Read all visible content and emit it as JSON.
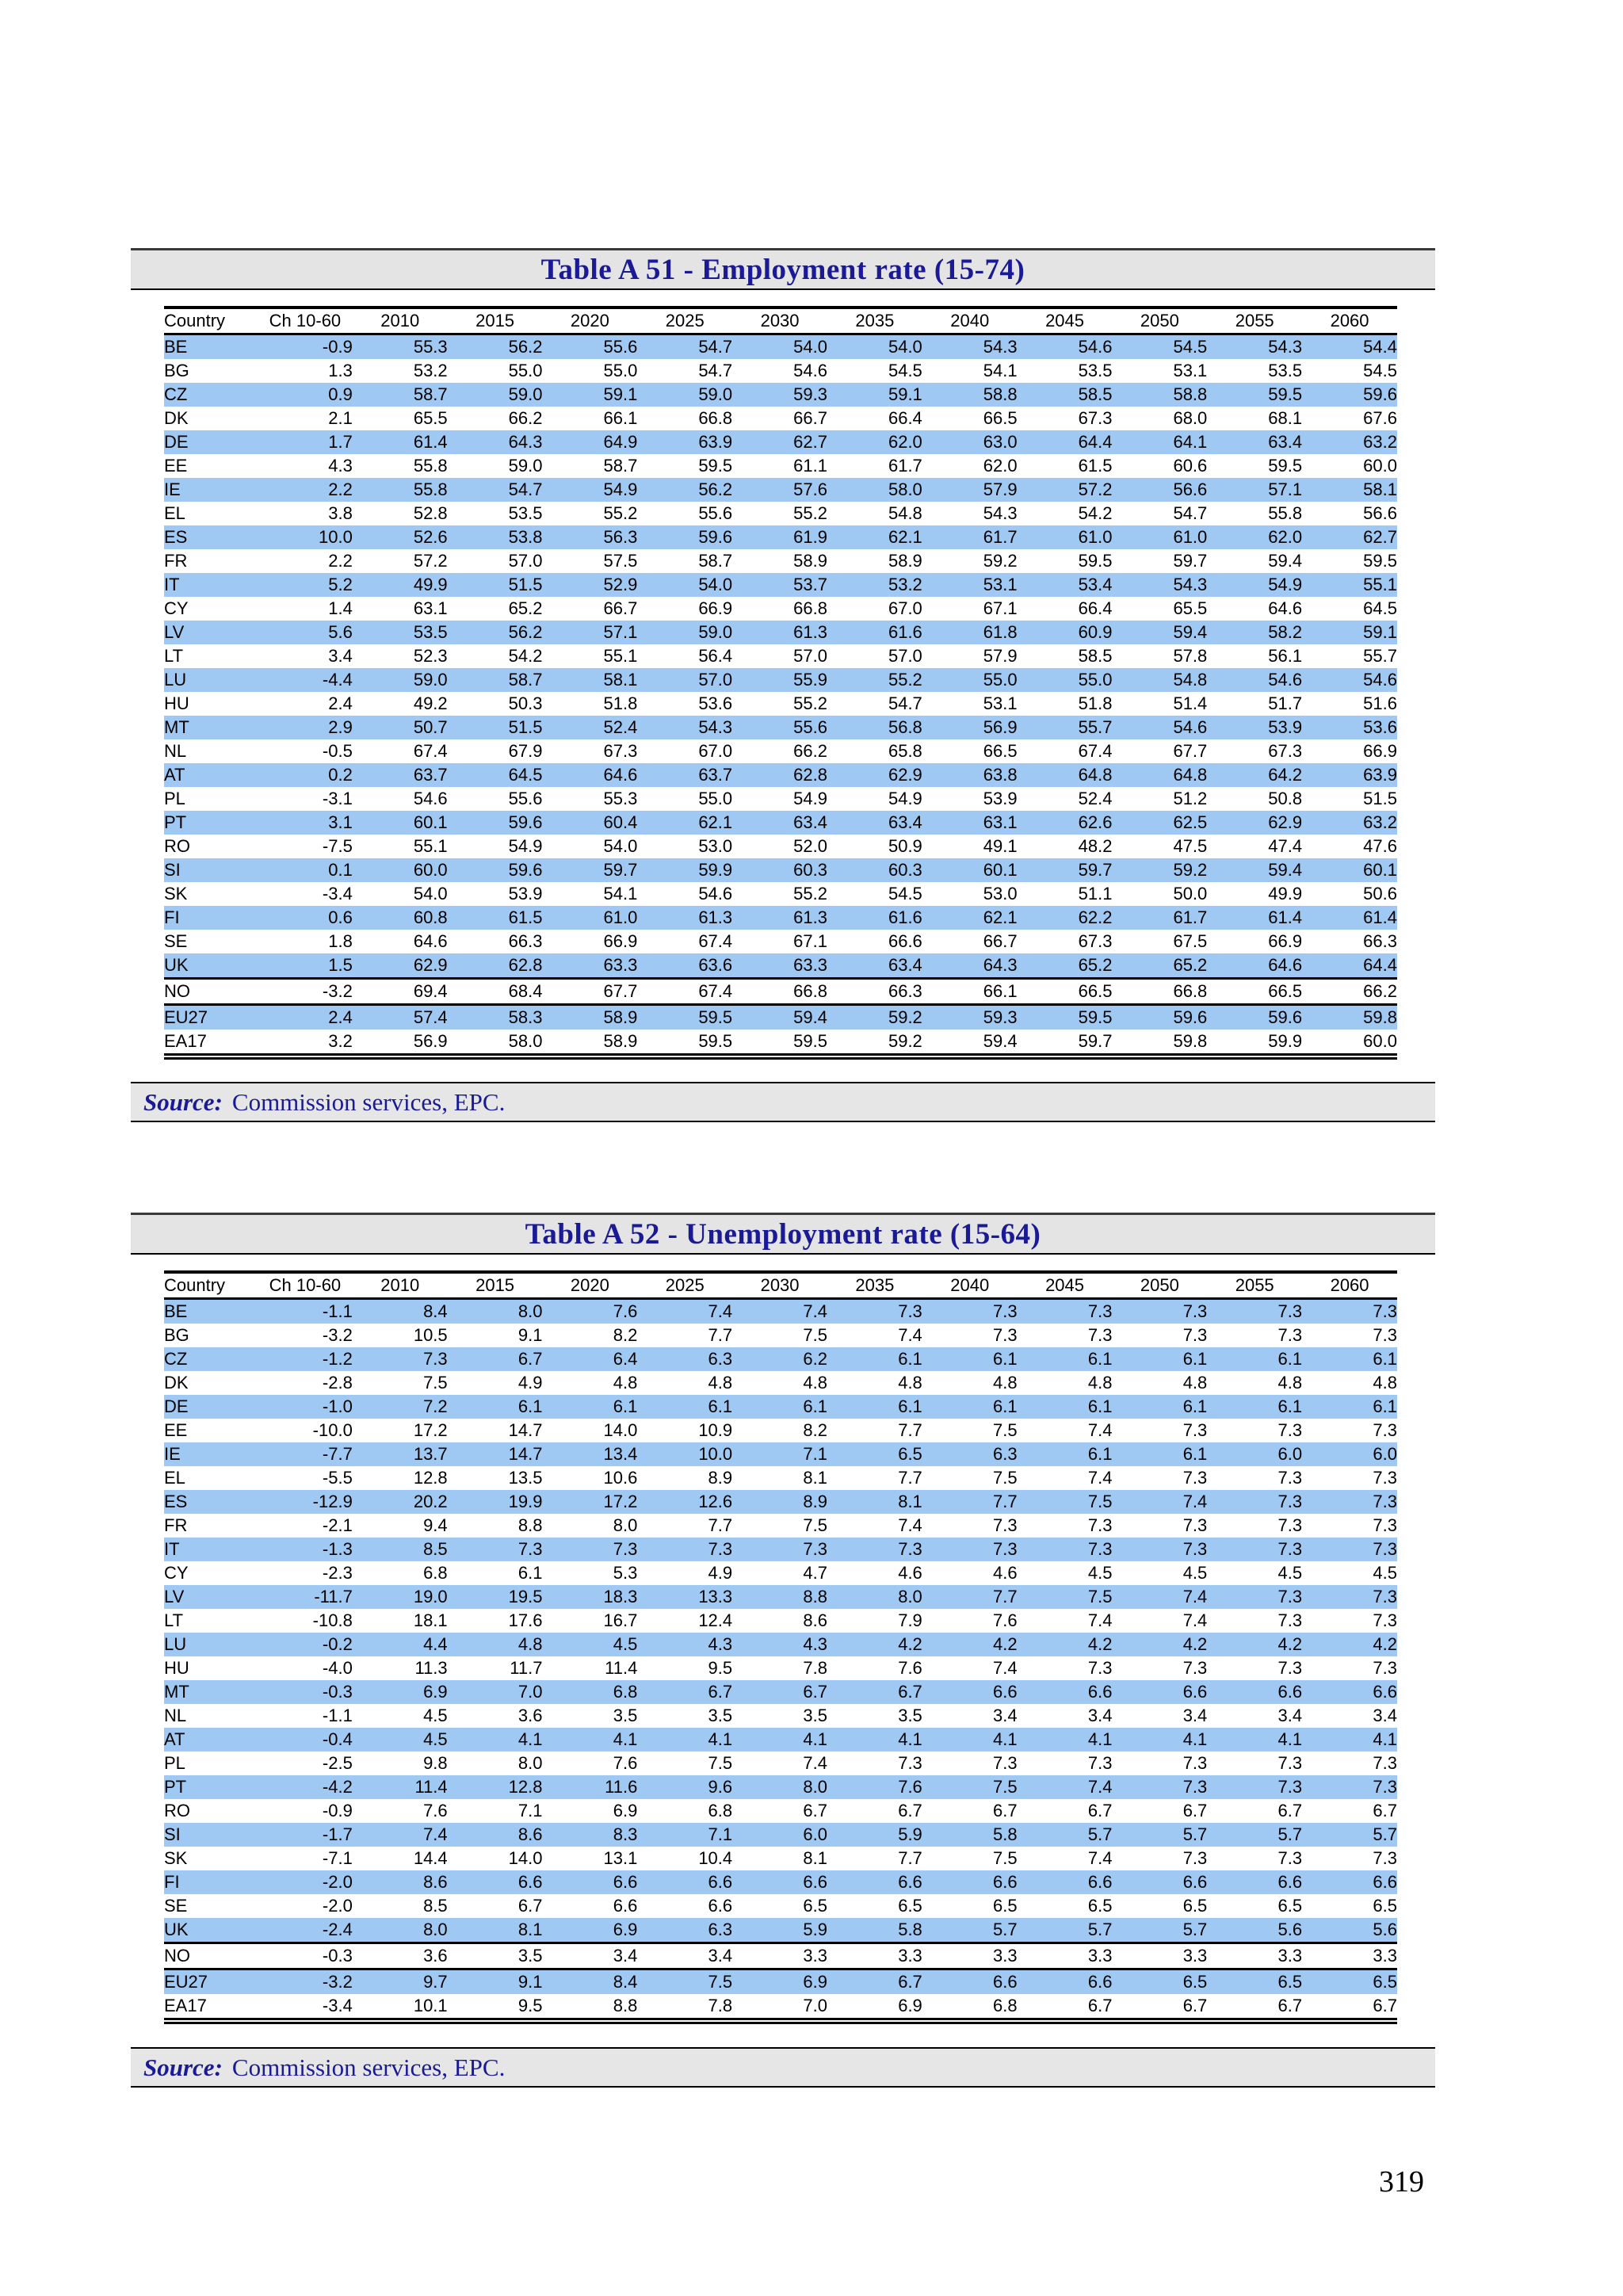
{
  "page": {
    "number": "319"
  },
  "colors": {
    "row_highlight": "#9fc9f3",
    "banner_background": "#e4e4e4",
    "title_navy": "#1a1a96"
  },
  "tables": [
    {
      "title": "Table A 51 - Employment rate (15-74)",
      "source_label": "Source:",
      "source_text": "Commission services, EPC.",
      "columns": [
        "Country",
        "Ch 10-60",
        "2010",
        "2015",
        "2020",
        "2025",
        "2030",
        "2035",
        "2040",
        "2045",
        "2050",
        "2055",
        "2060"
      ],
      "rule_below": [
        "UK",
        "NO"
      ],
      "rows": [
        [
          "BE",
          "-0.9",
          "55.3",
          "56.2",
          "55.6",
          "54.7",
          "54.0",
          "54.0",
          "54.3",
          "54.6",
          "54.5",
          "54.3",
          "54.4"
        ],
        [
          "BG",
          "1.3",
          "53.2",
          "55.0",
          "55.0",
          "54.7",
          "54.6",
          "54.5",
          "54.1",
          "53.5",
          "53.1",
          "53.5",
          "54.5"
        ],
        [
          "CZ",
          "0.9",
          "58.7",
          "59.0",
          "59.1",
          "59.0",
          "59.3",
          "59.1",
          "58.8",
          "58.5",
          "58.8",
          "59.5",
          "59.6"
        ],
        [
          "DK",
          "2.1",
          "65.5",
          "66.2",
          "66.1",
          "66.8",
          "66.7",
          "66.4",
          "66.5",
          "67.3",
          "68.0",
          "68.1",
          "67.6"
        ],
        [
          "DE",
          "1.7",
          "61.4",
          "64.3",
          "64.9",
          "63.9",
          "62.7",
          "62.0",
          "63.0",
          "64.4",
          "64.1",
          "63.4",
          "63.2"
        ],
        [
          "EE",
          "4.3",
          "55.8",
          "59.0",
          "58.7",
          "59.5",
          "61.1",
          "61.7",
          "62.0",
          "61.5",
          "60.6",
          "59.5",
          "60.0"
        ],
        [
          "IE",
          "2.2",
          "55.8",
          "54.7",
          "54.9",
          "56.2",
          "57.6",
          "58.0",
          "57.9",
          "57.2",
          "56.6",
          "57.1",
          "58.1"
        ],
        [
          "EL",
          "3.8",
          "52.8",
          "53.5",
          "55.2",
          "55.6",
          "55.2",
          "54.8",
          "54.3",
          "54.2",
          "54.7",
          "55.8",
          "56.6"
        ],
        [
          "ES",
          "10.0",
          "52.6",
          "53.8",
          "56.3",
          "59.6",
          "61.9",
          "62.1",
          "61.7",
          "61.0",
          "61.0",
          "62.0",
          "62.7"
        ],
        [
          "FR",
          "2.2",
          "57.2",
          "57.0",
          "57.5",
          "58.7",
          "58.9",
          "58.9",
          "59.2",
          "59.5",
          "59.7",
          "59.4",
          "59.5"
        ],
        [
          "IT",
          "5.2",
          "49.9",
          "51.5",
          "52.9",
          "54.0",
          "53.7",
          "53.2",
          "53.1",
          "53.4",
          "54.3",
          "54.9",
          "55.1"
        ],
        [
          "CY",
          "1.4",
          "63.1",
          "65.2",
          "66.7",
          "66.9",
          "66.8",
          "67.0",
          "67.1",
          "66.4",
          "65.5",
          "64.6",
          "64.5"
        ],
        [
          "LV",
          "5.6",
          "53.5",
          "56.2",
          "57.1",
          "59.0",
          "61.3",
          "61.6",
          "61.8",
          "60.9",
          "59.4",
          "58.2",
          "59.1"
        ],
        [
          "LT",
          "3.4",
          "52.3",
          "54.2",
          "55.1",
          "56.4",
          "57.0",
          "57.0",
          "57.9",
          "58.5",
          "57.8",
          "56.1",
          "55.7"
        ],
        [
          "LU",
          "-4.4",
          "59.0",
          "58.7",
          "58.1",
          "57.0",
          "55.9",
          "55.2",
          "55.0",
          "55.0",
          "54.8",
          "54.6",
          "54.6"
        ],
        [
          "HU",
          "2.4",
          "49.2",
          "50.3",
          "51.8",
          "53.6",
          "55.2",
          "54.7",
          "53.1",
          "51.8",
          "51.4",
          "51.7",
          "51.6"
        ],
        [
          "MT",
          "2.9",
          "50.7",
          "51.5",
          "52.4",
          "54.3",
          "55.6",
          "56.8",
          "56.9",
          "55.7",
          "54.6",
          "53.9",
          "53.6"
        ],
        [
          "NL",
          "-0.5",
          "67.4",
          "67.9",
          "67.3",
          "67.0",
          "66.2",
          "65.8",
          "66.5",
          "67.4",
          "67.7",
          "67.3",
          "66.9"
        ],
        [
          "AT",
          "0.2",
          "63.7",
          "64.5",
          "64.6",
          "63.7",
          "62.8",
          "62.9",
          "63.8",
          "64.8",
          "64.8",
          "64.2",
          "63.9"
        ],
        [
          "PL",
          "-3.1",
          "54.6",
          "55.6",
          "55.3",
          "55.0",
          "54.9",
          "54.9",
          "53.9",
          "52.4",
          "51.2",
          "50.8",
          "51.5"
        ],
        [
          "PT",
          "3.1",
          "60.1",
          "59.6",
          "60.4",
          "62.1",
          "63.4",
          "63.4",
          "63.1",
          "62.6",
          "62.5",
          "62.9",
          "63.2"
        ],
        [
          "RO",
          "-7.5",
          "55.1",
          "54.9",
          "54.0",
          "53.0",
          "52.0",
          "50.9",
          "49.1",
          "48.2",
          "47.5",
          "47.4",
          "47.6"
        ],
        [
          "SI",
          "0.1",
          "60.0",
          "59.6",
          "59.7",
          "59.9",
          "60.3",
          "60.3",
          "60.1",
          "59.7",
          "59.2",
          "59.4",
          "60.1"
        ],
        [
          "SK",
          "-3.4",
          "54.0",
          "53.9",
          "54.1",
          "54.6",
          "55.2",
          "54.5",
          "53.0",
          "51.1",
          "50.0",
          "49.9",
          "50.6"
        ],
        [
          "FI",
          "0.6",
          "60.8",
          "61.5",
          "61.0",
          "61.3",
          "61.3",
          "61.6",
          "62.1",
          "62.2",
          "61.7",
          "61.4",
          "61.4"
        ],
        [
          "SE",
          "1.8",
          "64.6",
          "66.3",
          "66.9",
          "67.4",
          "67.1",
          "66.6",
          "66.7",
          "67.3",
          "67.5",
          "66.9",
          "66.3"
        ],
        [
          "UK",
          "1.5",
          "62.9",
          "62.8",
          "63.3",
          "63.6",
          "63.3",
          "63.4",
          "64.3",
          "65.2",
          "65.2",
          "64.6",
          "64.4"
        ],
        [
          "NO",
          "-3.2",
          "69.4",
          "68.4",
          "67.7",
          "67.4",
          "66.8",
          "66.3",
          "66.1",
          "66.5",
          "66.8",
          "66.5",
          "66.2"
        ],
        [
          "EU27",
          "2.4",
          "57.4",
          "58.3",
          "58.9",
          "59.5",
          "59.4",
          "59.2",
          "59.3",
          "59.5",
          "59.6",
          "59.6",
          "59.8"
        ],
        [
          "EA17",
          "3.2",
          "56.9",
          "58.0",
          "58.9",
          "59.5",
          "59.5",
          "59.2",
          "59.4",
          "59.7",
          "59.8",
          "59.9",
          "60.0"
        ]
      ]
    },
    {
      "title": "Table A 52 - Unemployment rate (15-64)",
      "source_label": "Source:",
      "source_text": "Commission services, EPC.",
      "columns": [
        "Country",
        "Ch 10-60",
        "2010",
        "2015",
        "2020",
        "2025",
        "2030",
        "2035",
        "2040",
        "2045",
        "2050",
        "2055",
        "2060"
      ],
      "rule_below": [
        "UK",
        "NO"
      ],
      "rows": [
        [
          "BE",
          "-1.1",
          "8.4",
          "8.0",
          "7.6",
          "7.4",
          "7.4",
          "7.3",
          "7.3",
          "7.3",
          "7.3",
          "7.3",
          "7.3"
        ],
        [
          "BG",
          "-3.2",
          "10.5",
          "9.1",
          "8.2",
          "7.7",
          "7.5",
          "7.4",
          "7.3",
          "7.3",
          "7.3",
          "7.3",
          "7.3"
        ],
        [
          "CZ",
          "-1.2",
          "7.3",
          "6.7",
          "6.4",
          "6.3",
          "6.2",
          "6.1",
          "6.1",
          "6.1",
          "6.1",
          "6.1",
          "6.1"
        ],
        [
          "DK",
          "-2.8",
          "7.5",
          "4.9",
          "4.8",
          "4.8",
          "4.8",
          "4.8",
          "4.8",
          "4.8",
          "4.8",
          "4.8",
          "4.8"
        ],
        [
          "DE",
          "-1.0",
          "7.2",
          "6.1",
          "6.1",
          "6.1",
          "6.1",
          "6.1",
          "6.1",
          "6.1",
          "6.1",
          "6.1",
          "6.1"
        ],
        [
          "EE",
          "-10.0",
          "17.2",
          "14.7",
          "14.0",
          "10.9",
          "8.2",
          "7.7",
          "7.5",
          "7.4",
          "7.3",
          "7.3",
          "7.3"
        ],
        [
          "IE",
          "-7.7",
          "13.7",
          "14.7",
          "13.4",
          "10.0",
          "7.1",
          "6.5",
          "6.3",
          "6.1",
          "6.1",
          "6.0",
          "6.0"
        ],
        [
          "EL",
          "-5.5",
          "12.8",
          "13.5",
          "10.6",
          "8.9",
          "8.1",
          "7.7",
          "7.5",
          "7.4",
          "7.3",
          "7.3",
          "7.3"
        ],
        [
          "ES",
          "-12.9",
          "20.2",
          "19.9",
          "17.2",
          "12.6",
          "8.9",
          "8.1",
          "7.7",
          "7.5",
          "7.4",
          "7.3",
          "7.3"
        ],
        [
          "FR",
          "-2.1",
          "9.4",
          "8.8",
          "8.0",
          "7.7",
          "7.5",
          "7.4",
          "7.3",
          "7.3",
          "7.3",
          "7.3",
          "7.3"
        ],
        [
          "IT",
          "-1.3",
          "8.5",
          "7.3",
          "7.3",
          "7.3",
          "7.3",
          "7.3",
          "7.3",
          "7.3",
          "7.3",
          "7.3",
          "7.3"
        ],
        [
          "CY",
          "-2.3",
          "6.8",
          "6.1",
          "5.3",
          "4.9",
          "4.7",
          "4.6",
          "4.6",
          "4.5",
          "4.5",
          "4.5",
          "4.5"
        ],
        [
          "LV",
          "-11.7",
          "19.0",
          "19.5",
          "18.3",
          "13.3",
          "8.8",
          "8.0",
          "7.7",
          "7.5",
          "7.4",
          "7.3",
          "7.3"
        ],
        [
          "LT",
          "-10.8",
          "18.1",
          "17.6",
          "16.7",
          "12.4",
          "8.6",
          "7.9",
          "7.6",
          "7.4",
          "7.4",
          "7.3",
          "7.3"
        ],
        [
          "LU",
          "-0.2",
          "4.4",
          "4.8",
          "4.5",
          "4.3",
          "4.3",
          "4.2",
          "4.2",
          "4.2",
          "4.2",
          "4.2",
          "4.2"
        ],
        [
          "HU",
          "-4.0",
          "11.3",
          "11.7",
          "11.4",
          "9.5",
          "7.8",
          "7.6",
          "7.4",
          "7.3",
          "7.3",
          "7.3",
          "7.3"
        ],
        [
          "MT",
          "-0.3",
          "6.9",
          "7.0",
          "6.8",
          "6.7",
          "6.7",
          "6.7",
          "6.6",
          "6.6",
          "6.6",
          "6.6",
          "6.6"
        ],
        [
          "NL",
          "-1.1",
          "4.5",
          "3.6",
          "3.5",
          "3.5",
          "3.5",
          "3.5",
          "3.4",
          "3.4",
          "3.4",
          "3.4",
          "3.4"
        ],
        [
          "AT",
          "-0.4",
          "4.5",
          "4.1",
          "4.1",
          "4.1",
          "4.1",
          "4.1",
          "4.1",
          "4.1",
          "4.1",
          "4.1",
          "4.1"
        ],
        [
          "PL",
          "-2.5",
          "9.8",
          "8.0",
          "7.6",
          "7.5",
          "7.4",
          "7.3",
          "7.3",
          "7.3",
          "7.3",
          "7.3",
          "7.3"
        ],
        [
          "PT",
          "-4.2",
          "11.4",
          "12.8",
          "11.6",
          "9.6",
          "8.0",
          "7.6",
          "7.5",
          "7.4",
          "7.3",
          "7.3",
          "7.3"
        ],
        [
          "RO",
          "-0.9",
          "7.6",
          "7.1",
          "6.9",
          "6.8",
          "6.7",
          "6.7",
          "6.7",
          "6.7",
          "6.7",
          "6.7",
          "6.7"
        ],
        [
          "SI",
          "-1.7",
          "7.4",
          "8.6",
          "8.3",
          "7.1",
          "6.0",
          "5.9",
          "5.8",
          "5.7",
          "5.7",
          "5.7",
          "5.7"
        ],
        [
          "SK",
          "-7.1",
          "14.4",
          "14.0",
          "13.1",
          "10.4",
          "8.1",
          "7.7",
          "7.5",
          "7.4",
          "7.3",
          "7.3",
          "7.3"
        ],
        [
          "FI",
          "-2.0",
          "8.6",
          "6.6",
          "6.6",
          "6.6",
          "6.6",
          "6.6",
          "6.6",
          "6.6",
          "6.6",
          "6.6",
          "6.6"
        ],
        [
          "SE",
          "-2.0",
          "8.5",
          "6.7",
          "6.6",
          "6.6",
          "6.5",
          "6.5",
          "6.5",
          "6.5",
          "6.5",
          "6.5",
          "6.5"
        ],
        [
          "UK",
          "-2.4",
          "8.0",
          "8.1",
          "6.9",
          "6.3",
          "5.9",
          "5.8",
          "5.7",
          "5.7",
          "5.7",
          "5.6",
          "5.6"
        ],
        [
          "NO",
          "-0.3",
          "3.6",
          "3.5",
          "3.4",
          "3.4",
          "3.3",
          "3.3",
          "3.3",
          "3.3",
          "3.3",
          "3.3",
          "3.3"
        ],
        [
          "EU27",
          "-3.2",
          "9.7",
          "9.1",
          "8.4",
          "7.5",
          "6.9",
          "6.7",
          "6.6",
          "6.6",
          "6.5",
          "6.5",
          "6.5"
        ],
        [
          "EA17",
          "-3.4",
          "10.1",
          "9.5",
          "8.8",
          "7.8",
          "7.0",
          "6.9",
          "6.8",
          "6.7",
          "6.7",
          "6.7",
          "6.7"
        ]
      ]
    }
  ]
}
